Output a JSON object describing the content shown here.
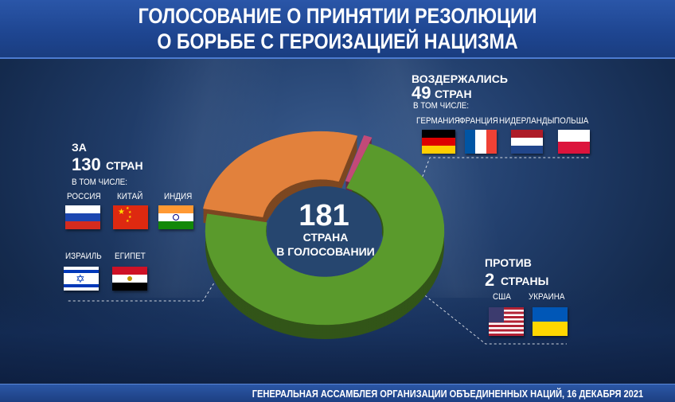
{
  "title": {
    "line1": "ГОЛОСОВАНИЕ О ПРИНЯТИИ РЕЗОЛЮЦИИ",
    "line2": "О БОРЬБЕ С ГЕРОИЗАЦИЕЙ НАЦИЗМА"
  },
  "footer": "ГЕНЕРАЛЬНАЯ АССАМБЛЕЯ ОРГАНИЗАЦИИ ОБЪЕДИНЕННЫХ НАЦИЙ, 16 ДЕКАБРЯ 2021",
  "center": {
    "number": "181",
    "line1": "СТРАНА",
    "line2": "В ГОЛОСОВАНИИ"
  },
  "groups": {
    "for": {
      "label": "ЗА",
      "count": "130",
      "unit": "СТРАН",
      "incl": "В ТОМ ЧИСЛЕ:",
      "countries": [
        "РОССИЯ",
        "КИТАЙ",
        "ИНДИЯ",
        "ИЗРАИЛЬ",
        "ЕГИПЕТ"
      ]
    },
    "abstain": {
      "label": "ВОЗДЕРЖАЛИСЬ",
      "count": "49",
      "unit": "СТРАН",
      "incl": "В ТОМ ЧИСЛЕ:",
      "countries": [
        "ГЕРМАНИЯ",
        "ФРАНЦИЯ",
        "НИДЕРЛАНДЫ",
        "ПОЛЬША"
      ]
    },
    "against": {
      "label": "ПРОТИВ",
      "count": "2",
      "unit": "СТРАНЫ",
      "countries": [
        "США",
        "УКРАИНА"
      ]
    }
  },
  "chart_data": {
    "type": "pie",
    "variant": "donut-3d",
    "total": 181,
    "slices": [
      {
        "label": "ЗА",
        "value": 130,
        "color": "#5a9a2c"
      },
      {
        "label": "ВОЗДЕРЖАЛИСЬ",
        "value": 49,
        "color": "#e2813c"
      },
      {
        "label": "ПРОТИВ",
        "value": 2,
        "color": "#c24a78"
      }
    ]
  },
  "colors": {
    "for": "#5a9a2c",
    "abstain": "#e2813c",
    "against": "#c24a78",
    "title_band": "#1e4590"
  }
}
